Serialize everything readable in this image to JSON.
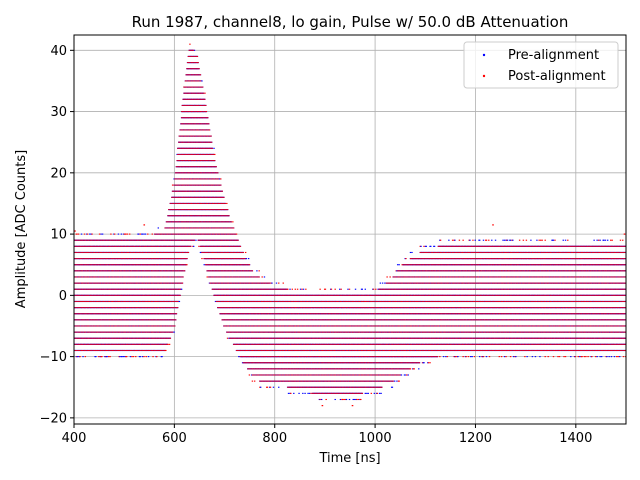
{
  "chart_data": {
    "type": "scatter",
    "title": "Run 1987, channel8, lo gain, Pulse w/ 50.0 dB Attenuation",
    "xlabel": "Time [ns]",
    "ylabel": "Amplitude [ADC Counts]",
    "xlim": [
      400,
      1500
    ],
    "ylim": [
      -21,
      42.5
    ],
    "xticks": [
      400,
      600,
      800,
      1000,
      1200,
      1400
    ],
    "yticks": [
      -20,
      -10,
      0,
      10,
      20,
      30,
      40
    ],
    "grid": true,
    "legend_position": "top-right",
    "series": [
      {
        "name": "Pre-alignment",
        "color": "#0000ff",
        "marker": "point"
      },
      {
        "name": "Post-alignment",
        "color": "#ff0000",
        "marker": "point"
      }
    ],
    "amplitude_step": 1,
    "envelope": {
      "x": [
        400,
        540,
        580,
        600,
        615,
        630,
        645,
        660,
        680,
        700,
        720,
        740,
        760,
        780,
        800,
        850,
        900,
        950,
        1000,
        1030,
        1060,
        1100,
        1150,
        1200,
        1300,
        1400,
        1500
      ],
      "upper": [
        9,
        9,
        10,
        18,
        30,
        40,
        39,
        32,
        22,
        15,
        10,
        6,
        3,
        2,
        1,
        0,
        0,
        0,
        0,
        2,
        5,
        7,
        8,
        8,
        8,
        8,
        8
      ],
      "lower": [
        -9,
        -9,
        -9,
        -5,
        2,
        8,
        10,
        6,
        0,
        -5,
        -8,
        -11,
        -13,
        -14,
        -14,
        -15,
        -16,
        -16,
        -15,
        -14,
        -12,
        -10,
        -9,
        -9,
        -9,
        -9,
        -9
      ]
    },
    "outliers": [
      {
        "x": 540,
        "y": 11.5
      },
      {
        "x": 1235,
        "y": 11.5
      },
      {
        "x": 895,
        "y": -18
      },
      {
        "x": 955,
        "y": -18
      },
      {
        "x": 402,
        "y": 10.5
      },
      {
        "x": 1497,
        "y": 10
      }
    ]
  }
}
